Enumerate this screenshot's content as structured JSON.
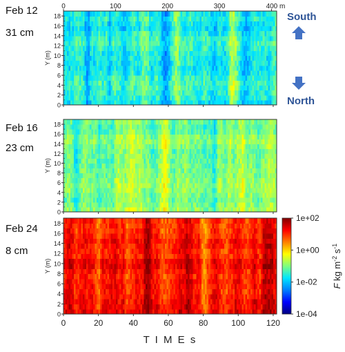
{
  "figure": {
    "panels": [
      {
        "date": "Feb 12",
        "depth": "31 cm"
      },
      {
        "date": "Feb 16",
        "depth": "23 cm"
      },
      {
        "date": "Feb 24",
        "depth": "8 cm"
      }
    ],
    "directions": {
      "up": "South",
      "down": "North"
    },
    "arrow_color": "#4472c4",
    "label_color": "#2f5597"
  },
  "chart_data": {
    "type": "heatmap",
    "panel_count": 3,
    "xlabel": "T I M E     s",
    "x_ticks": [
      0,
      20,
      40,
      60,
      80,
      100,
      120
    ],
    "xlim": [
      0,
      122
    ],
    "top_axis": {
      "ticks": [
        "0",
        "100",
        "200",
        "300",
        "400 m"
      ],
      "values": [
        0,
        100,
        200,
        300,
        400
      ]
    },
    "ylabel": "Y (m)",
    "y_ticks": [
      0,
      2,
      4,
      6,
      8,
      10,
      12,
      14,
      16,
      18
    ],
    "ylim": [
      0,
      19
    ],
    "colorbar": {
      "label_symbol": "F",
      "label_units": "kg m",
      "label_exp1": "-2",
      "label_s": " s",
      "label_exp2": "-1",
      "ticks": [
        "1e+02",
        "1e+00",
        "1e-02",
        "1e-04"
      ],
      "values": [
        2,
        0,
        -2,
        -4
      ],
      "scale": "log",
      "range": [
        -4,
        2
      ],
      "colormap": [
        "#00007f",
        "#0000ff",
        "#007fff",
        "#00e5ff",
        "#7fff7f",
        "#ffff00",
        "#ff7f00",
        "#ff0000",
        "#7f0000"
      ]
    },
    "series": [
      {
        "log10_mean": -1.55,
        "spread": 0.65,
        "hot_columns": [
          [
            46,
            3
          ],
          [
            96,
            2
          ],
          [
            64,
            2
          ]
        ],
        "cold_columns": [
          [
            13,
            2
          ],
          [
            58,
            2
          ],
          [
            26,
            1.5
          ]
        ]
      },
      {
        "log10_mean": -0.95,
        "spread": 0.55,
        "hot_columns": [
          [
            58,
            3
          ],
          [
            101,
            3
          ],
          [
            38,
            2
          ]
        ],
        "cold_columns": [
          [
            20,
            2
          ],
          [
            86,
            2
          ],
          [
            7,
            2
          ]
        ]
      },
      {
        "log10_mean": 1.15,
        "spread": 0.55,
        "hot_columns": [
          [
            66,
            2
          ],
          [
            70,
            2
          ],
          [
            116,
            3
          ],
          [
            47,
            4
          ]
        ],
        "cold_columns": [
          [
            93,
            1.5
          ],
          [
            80,
            2
          ],
          [
            20,
            2
          ]
        ]
      }
    ]
  }
}
